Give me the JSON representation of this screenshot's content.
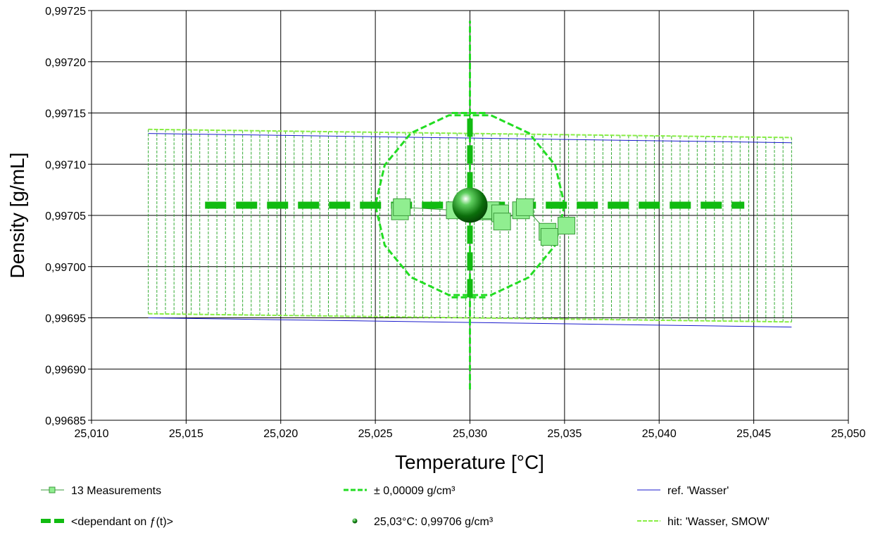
{
  "chart_data": {
    "type": "scatter",
    "xlabel": "Temperature [°C]",
    "ylabel": "Density [g/mL]",
    "xlim": [
      25.01,
      25.05
    ],
    "ylim": [
      0.99685,
      0.99725
    ],
    "x_ticks": [
      "25,010",
      "25,015",
      "25,020",
      "25,025",
      "25,030",
      "25,035",
      "25,040",
      "25,045",
      "25,050"
    ],
    "y_ticks": [
      "0,99685",
      "0,99690",
      "0,99695",
      "0,99700",
      "0,99705",
      "0,99710",
      "0,99715",
      "0,99720",
      "0,99725"
    ],
    "grid": true,
    "legend_position": "bottom",
    "colors": {
      "measurements": "#90ee90",
      "measurements_edge": "#3a9a3a",
      "tolerance": "#22dd22",
      "dependant": "#11bb11",
      "point": "#0b6e0b",
      "ref": "#1a1acc",
      "hit": "#88ee44",
      "hatch": "#33aa33"
    },
    "series": [
      {
        "name": "13 Measurements",
        "x": [
          25.0263,
          25.0264,
          25.0292,
          25.03,
          25.0307,
          25.0311,
          25.0316,
          25.0317,
          25.0327,
          25.0329,
          25.0341,
          25.0342,
          25.0351
        ],
        "y": [
          0.997054,
          0.997058,
          0.997055,
          0.997058,
          0.997054,
          0.997055,
          0.997052,
          0.997044,
          0.997055,
          0.997058,
          0.997034,
          0.997029,
          0.99704
        ]
      },
      {
        "name": "± 0,00009 g/cm³",
        "center": [
          25.03,
          0.99706
        ],
        "half_width_x": 0.005,
        "half_height_y": 9e-05
      },
      {
        "name": "<dependant on ƒ(t)>",
        "horizontal": {
          "y": 0.99706,
          "x_range": [
            25.016,
            25.0445
          ]
        },
        "vertical": {
          "x": 25.03,
          "y_range": [
            0.99688,
            0.99724
          ]
        }
      },
      {
        "name": "25,03°C: 0,99706 g/cm³",
        "x": [
          25.03
        ],
        "y": [
          0.99706
        ]
      },
      {
        "name": "ref. 'Wasser'",
        "upper": {
          "x": [
            25.013,
            25.047
          ],
          "y": [
            0.99713,
            0.997121
          ]
        },
        "lower": {
          "x": [
            25.013,
            25.047
          ],
          "y": [
            0.99695,
            0.996941
          ]
        }
      },
      {
        "name": "hit: 'Wasser, SMOW'",
        "upper": {
          "x": [
            25.013,
            25.047
          ],
          "y": [
            0.997134,
            0.997126
          ]
        },
        "lower": {
          "x": [
            25.013,
            25.047
          ],
          "y": [
            0.996954,
            0.996946
          ]
        }
      }
    ]
  },
  "legend": [
    {
      "label": "13 Measurements",
      "symbol": "measurements"
    },
    {
      "label": "± 0,00009 g/cm³",
      "symbol": "tolerance"
    },
    {
      "label": "ref. 'Wasser'",
      "symbol": "ref"
    },
    {
      "label": "<dependant on ƒ(t)>",
      "symbol": "dependant"
    },
    {
      "label": "25,03°C: 0,99706 g/cm³",
      "symbol": "point"
    },
    {
      "label": "hit: 'Wasser, SMOW'",
      "symbol": "hit"
    }
  ]
}
